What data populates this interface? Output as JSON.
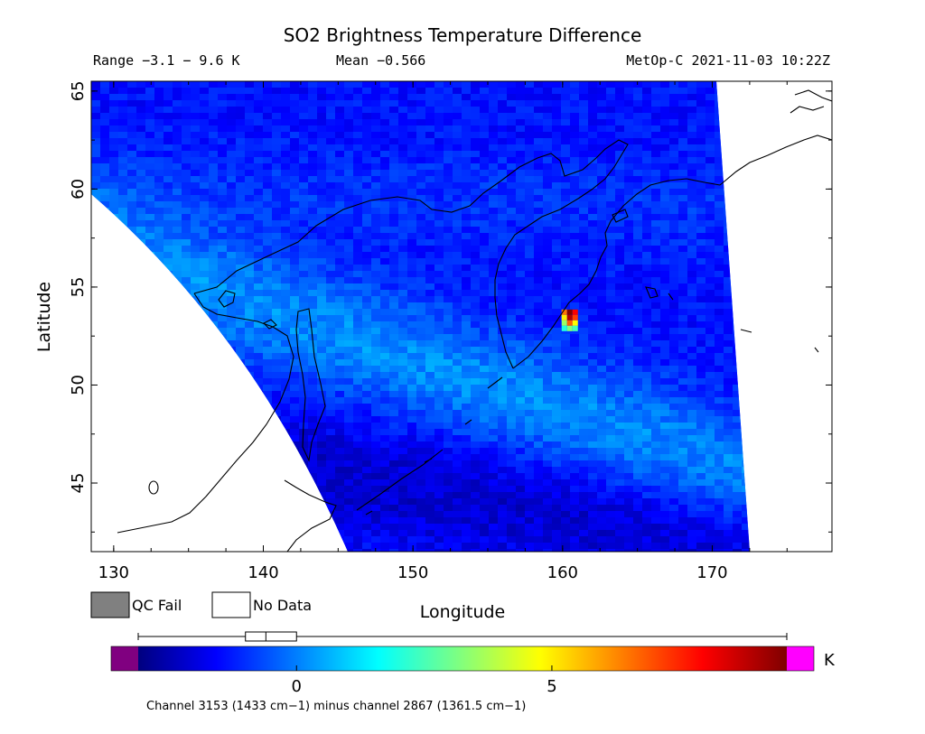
{
  "chart_data": {
    "type": "heatmap",
    "title": "SO2 Brightness Temperature Difference",
    "info_left": "Range −3.1 − 9.6 K",
    "info_mid": "Mean −0.566",
    "info_right": "MetOp-C 2021-11-03 10:22Z",
    "xlabel": "Longitude",
    "ylabel": "Latitude",
    "xlim": [
      128.5,
      178
    ],
    "ylim": [
      41.5,
      65.5
    ],
    "x_ticks": [
      130,
      140,
      150,
      160,
      170
    ],
    "y_ticks": [
      45,
      50,
      55,
      60,
      65
    ],
    "x_tick_labels": [
      "130",
      "140",
      "150",
      "160",
      "170"
    ],
    "y_tick_labels": [
      "45",
      "50",
      "55",
      "60",
      "65"
    ],
    "grid": false,
    "hotspot": {
      "lon": 160.6,
      "lat": 53.3,
      "max_value_k": 9.6
    },
    "legend": [
      {
        "label": "QC Fail",
        "color": "#808080"
      },
      {
        "label": "No Data",
        "color": "#ffffff"
      }
    ],
    "colorbar": {
      "unit": "K",
      "range": [
        -3.1,
        9.6
      ],
      "ticks": [
        0,
        5
      ],
      "tick_labels": [
        "0",
        "5"
      ],
      "under_color": "#800080",
      "over_color": "#ff00ff",
      "colors": [
        "#00007f",
        "#0000ff",
        "#00ffff",
        "#ffff00",
        "#ff0000",
        "#7f0000"
      ],
      "box": {
        "q1": -1.0,
        "median": -0.6,
        "q3": 0.0,
        "min": -3.1,
        "max": 9.6
      }
    },
    "footnote": "Channel 3153 (1433 cm−1) minus channel 2867 (1361.5 cm−1)"
  }
}
